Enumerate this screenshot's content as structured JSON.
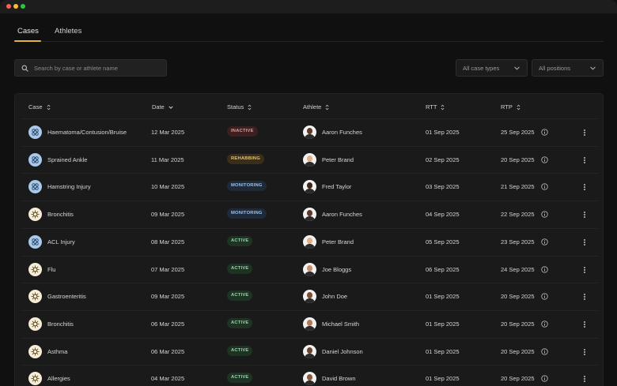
{
  "window": {
    "controls": [
      "close",
      "minimize",
      "maximize"
    ]
  },
  "tabs": [
    {
      "label": "Cases",
      "active": true
    },
    {
      "label": "Athletes",
      "active": false
    }
  ],
  "search": {
    "placeholder": "Search by case or athlete name",
    "value": ""
  },
  "filters": {
    "case_types": "All case types",
    "positions": "All positions"
  },
  "table": {
    "columns": [
      "Case",
      "Date",
      "Status",
      "Athlete",
      "RTT",
      "RTP"
    ],
    "rows": [
      {
        "case": "Haematoma/Contusion/Bruise",
        "case_kind": "injury",
        "date": "12 Mar 2025",
        "status": "INACTIVE",
        "athlete": "Aaron Funches",
        "rtt": "01 Sep 2025",
        "rtp": "25 Sep 2025"
      },
      {
        "case": "Sprained Ankle",
        "case_kind": "injury",
        "date": "11 Mar 2025",
        "status": "REHABBING",
        "athlete": "Peter Brand",
        "rtt": "02 Sep 2025",
        "rtp": "20 Sep 2025"
      },
      {
        "case": "Hamstring Injury",
        "case_kind": "injury",
        "date": "10 Mar 2025",
        "status": "MONITORING",
        "athlete": "Fred Taylor",
        "rtt": "03 Sep 2025",
        "rtp": "21 Sep 2025"
      },
      {
        "case": "Bronchitis",
        "case_kind": "illness",
        "date": "09 Mar 2025",
        "status": "MONITORING",
        "athlete": "Aaron Funches",
        "rtt": "04 Sep 2025",
        "rtp": "22 Sep 2025"
      },
      {
        "case": "ACL Injury",
        "case_kind": "injury",
        "date": "08 Mar 2025",
        "status": "ACTIVE",
        "athlete": "Peter Brand",
        "rtt": "05 Sep 2025",
        "rtp": "23 Sep 2025"
      },
      {
        "case": "Flu",
        "case_kind": "illness",
        "date": "07 Mar 2025",
        "status": "ACTIVE",
        "athlete": "Joe Bloggs",
        "rtt": "06 Sep 2025",
        "rtp": "24 Sep 2025"
      },
      {
        "case": "Gastroenteritis",
        "case_kind": "illness",
        "date": "09 Mar 2025",
        "status": "ACTIVE",
        "athlete": "John Doe",
        "rtt": "01 Sep 2025",
        "rtp": "20 Sep 2025"
      },
      {
        "case": "Bronchitis",
        "case_kind": "illness",
        "date": "06 Mar 2025",
        "status": "ACTIVE",
        "athlete": "Michael Smith",
        "rtt": "01 Sep 2025",
        "rtp": "20 Sep 2025"
      },
      {
        "case": "Asthma",
        "case_kind": "illness",
        "date": "06 Mar 2025",
        "status": "ACTIVE",
        "athlete": "Daniel Johnson",
        "rtt": "01 Sep 2025",
        "rtp": "20 Sep 2025"
      },
      {
        "case": "Allergies",
        "case_kind": "illness",
        "date": "04 Mar 2025",
        "status": "ACTIVE",
        "athlete": "David Brown",
        "rtt": "01 Sep 2025",
        "rtp": "20 Sep 2025"
      }
    ]
  },
  "colors": {
    "accent": "#e3b53c",
    "injury_icon": "#a9c8ea",
    "illness_icon": "#f4ecd6",
    "inactive": "#e89a9a",
    "rehabbing": "#e3c07a",
    "monitoring": "#9cc2ea",
    "active": "#8fd6a3"
  },
  "icons": {
    "search": "search-icon",
    "dropdown": "chevron-down-icon",
    "sort": "sort-icon",
    "info": "info-icon",
    "more": "more-vertical-icon",
    "injury": "bandage-icon",
    "illness": "virus-icon"
  }
}
